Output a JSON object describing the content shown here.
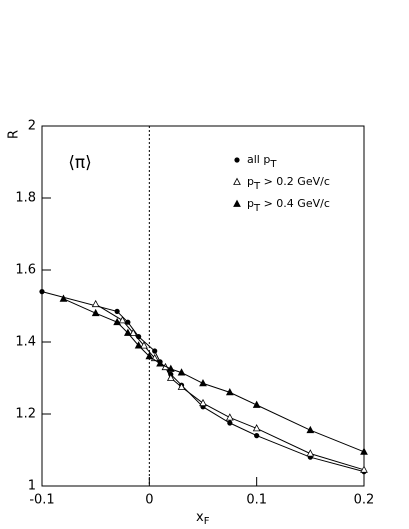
{
  "chart_data": {
    "type": "line",
    "xlabel": "xF",
    "ylabel": "R",
    "annotation": "⟨π⟩",
    "xlim": [
      -0.1,
      0.2
    ],
    "xticks": [
      -0.1,
      0,
      0.1,
      0.2
    ],
    "ylim": [
      1,
      2
    ],
    "yticks": [
      1,
      1.2,
      1.4,
      1.6,
      1.8,
      2
    ],
    "vline": 0,
    "legend": "upper right",
    "series": [
      {
        "name": "all pT",
        "color": "#000",
        "marker": "circle",
        "x": [
          -0.1,
          -0.03,
          -0.02,
          -0.01,
          0.005,
          0.01,
          0.02,
          0.03,
          0.05,
          0.075,
          0.1,
          0.15,
          0.2
        ],
        "values": [
          1.54,
          1.485,
          1.455,
          1.415,
          1.375,
          1.345,
          1.31,
          1.28,
          1.22,
          1.175,
          1.14,
          1.08,
          1.04
        ]
      },
      {
        "name": "pT > 0.2 GeV/c",
        "color": "#000",
        "marker": "open-triangle",
        "x": [
          -0.05,
          -0.025,
          -0.015,
          -0.005,
          0.005,
          0.015,
          0.02,
          0.03,
          0.05,
          0.075,
          0.1,
          0.15,
          0.2
        ],
        "values": [
          1.505,
          1.46,
          1.425,
          1.39,
          1.355,
          1.33,
          1.3,
          1.275,
          1.23,
          1.19,
          1.16,
          1.09,
          1.045
        ]
      },
      {
        "name": "pT > 0.4 GeV/c",
        "color": "#000",
        "marker": "triangle",
        "x": [
          -0.08,
          -0.05,
          -0.03,
          -0.02,
          -0.01,
          0,
          0.01,
          0.02,
          0.03,
          0.05,
          0.075,
          0.1,
          0.15,
          0.2
        ],
        "values": [
          1.52,
          1.48,
          1.455,
          1.425,
          1.39,
          1.36,
          1.34,
          1.325,
          1.315,
          1.285,
          1.26,
          1.225,
          1.155,
          1.095
        ]
      }
    ]
  }
}
